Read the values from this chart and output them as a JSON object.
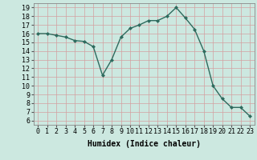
{
  "x": [
    0,
    1,
    2,
    3,
    4,
    5,
    6,
    7,
    8,
    9,
    10,
    11,
    12,
    13,
    14,
    15,
    16,
    17,
    18,
    19,
    20,
    21,
    22,
    23
  ],
  "y": [
    16.0,
    16.0,
    15.8,
    15.6,
    15.2,
    15.1,
    14.5,
    11.2,
    13.0,
    15.6,
    16.6,
    17.0,
    17.5,
    17.5,
    18.0,
    19.0,
    17.8,
    16.5,
    14.0,
    10.0,
    8.5,
    7.5,
    7.5,
    6.5
  ],
  "line_color": "#2e6b5e",
  "marker_color": "#2e6b5e",
  "bg_color": "#cce8e0",
  "grid_color": "#b8d8d0",
  "xlabel": "Humidex (Indice chaleur)",
  "xlim": [
    -0.5,
    23.5
  ],
  "ylim": [
    5.5,
    19.5
  ],
  "yticks": [
    6,
    7,
    8,
    9,
    10,
    11,
    12,
    13,
    14,
    15,
    16,
    17,
    18,
    19
  ],
  "xticks": [
    0,
    1,
    2,
    3,
    4,
    5,
    6,
    7,
    8,
    9,
    10,
    11,
    12,
    13,
    14,
    15,
    16,
    17,
    18,
    19,
    20,
    21,
    22,
    23
  ],
  "tick_fontsize": 6,
  "label_fontsize": 7
}
